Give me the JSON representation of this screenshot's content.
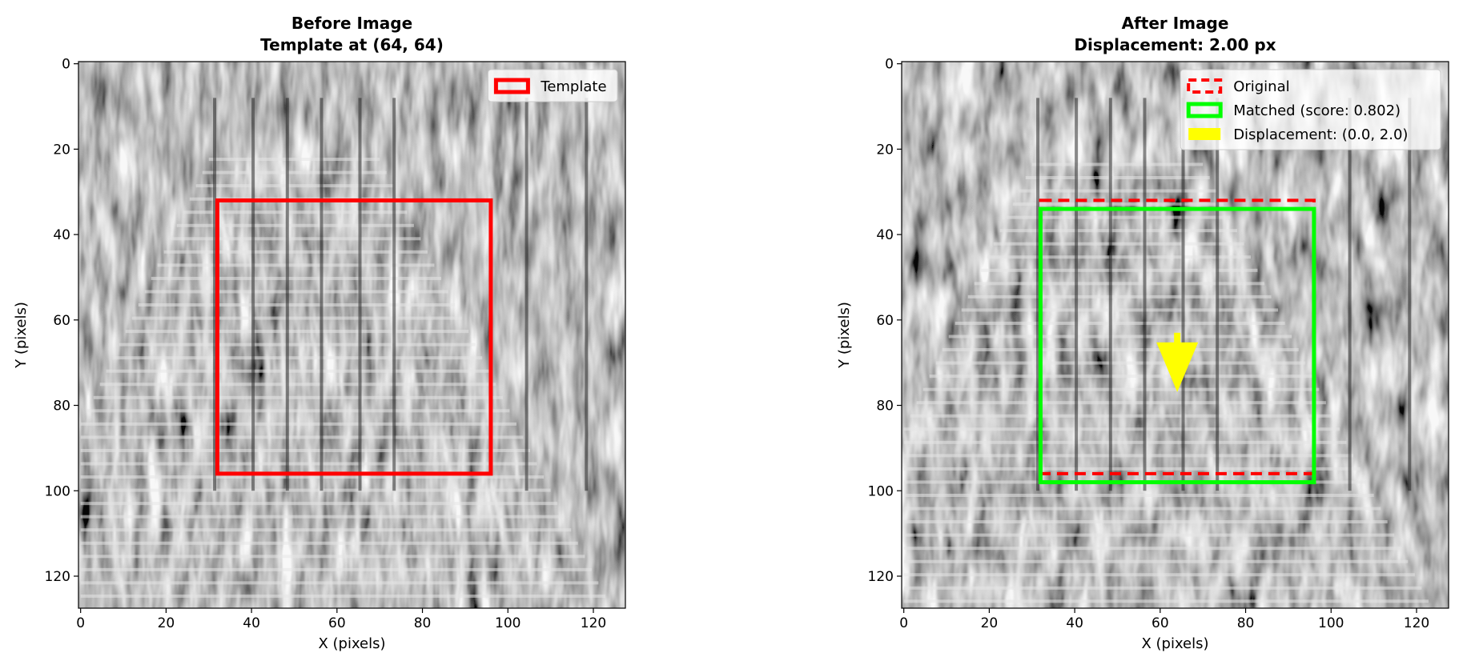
{
  "chart_data": [
    {
      "type": "image",
      "title": "Before Image\nTemplate at (64, 64)",
      "title_lines": [
        "Before Image",
        "Template at (64, 64)"
      ],
      "xlabel": "X (pixels)",
      "ylabel": "Y (pixels)",
      "xlim": [
        -0.5,
        127.5
      ],
      "ylim": [
        127.5,
        -0.5
      ],
      "xticks": [
        0,
        20,
        40,
        60,
        80,
        100,
        120
      ],
      "yticks": [
        0,
        20,
        40,
        60,
        80,
        100,
        120
      ],
      "image_colormap": "gray",
      "overlays": [
        {
          "kind": "rect",
          "name": "Template",
          "x": 32,
          "y": 32,
          "width": 64,
          "height": 64,
          "color": "#ff0000",
          "linestyle": "solid"
        }
      ],
      "legend": {
        "placement": "upper-right",
        "entries": [
          {
            "label": "Template",
            "color": "#ff0000",
            "style": "solid-box"
          }
        ]
      }
    },
    {
      "type": "image",
      "title": "After Image\nDisplacement: 2.00 px",
      "title_lines": [
        "After Image",
        "Displacement: 2.00 px"
      ],
      "xlabel": "X (pixels)",
      "ylabel": "Y (pixels)",
      "xlim": [
        -0.5,
        127.5
      ],
      "ylim": [
        127.5,
        -0.5
      ],
      "xticks": [
        0,
        20,
        40,
        60,
        80,
        100,
        120
      ],
      "yticks": [
        0,
        20,
        40,
        60,
        80,
        100,
        120
      ],
      "image_colormap": "gray",
      "overlays": [
        {
          "kind": "rect",
          "name": "Original",
          "x": 32,
          "y": 32,
          "width": 64,
          "height": 64,
          "color": "#ff0000",
          "linestyle": "dashed"
        },
        {
          "kind": "rect",
          "name": "Matched (score: 0.802)",
          "x": 32,
          "y": 34,
          "width": 64,
          "height": 64,
          "color": "#00ff00",
          "linestyle": "solid"
        },
        {
          "kind": "arrow",
          "name": "Displacement: (0.0, 2.0)",
          "x": 64,
          "y": 64,
          "dx": 0.0,
          "dy": 2.0,
          "color": "#ffff00"
        }
      ],
      "legend": {
        "placement": "upper-right",
        "entries": [
          {
            "label": "Original",
            "color": "#ff0000",
            "style": "dashed-box"
          },
          {
            "label": "Matched (score: 0.802)",
            "color": "#00ff00",
            "style": "solid-box"
          },
          {
            "label": "Displacement: (0.0, 2.0)",
            "color": "#ffff00",
            "style": "filled-box"
          }
        ]
      }
    }
  ]
}
